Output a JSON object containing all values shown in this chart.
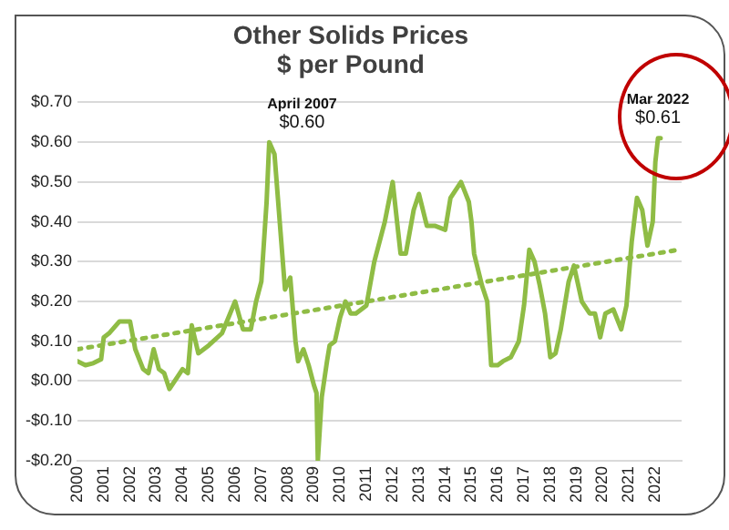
{
  "chart_data": {
    "type": "line",
    "title": "Other Solids Prices\n$ per Pound",
    "series": [
      {
        "color": "#8fbc45",
        "line_style": "solid",
        "x": [
          2000,
          2000.3,
          2000.6,
          2000.9,
          2001,
          2001.2,
          2001.6,
          2002,
          2002.2,
          2002.5,
          2002.7,
          2002.9,
          2003.1,
          2003.3,
          2003.5,
          2003.8,
          2004,
          2004.2,
          2004.35,
          2004.6,
          2005,
          2005.5,
          2006,
          2006.3,
          2006.6,
          2006.8,
          2007,
          2007.2,
          2007.3,
          2007.5,
          2007.7,
          2007.9,
          2008.1,
          2008.3,
          2008.4,
          2008.6,
          2008.8,
          2009,
          2009.1,
          2009.15,
          2009.3,
          2009.5,
          2009.6,
          2009.8,
          2010,
          2010.2,
          2010.4,
          2010.6,
          2011,
          2011.3,
          2011.7,
          2012,
          2012.3,
          2012.5,
          2012.8,
          2013,
          2013.3,
          2013.6,
          2014,
          2014.2,
          2014.6,
          2014.9,
          2015,
          2015.1,
          2015.4,
          2015.6,
          2015.75,
          2016,
          2016.2,
          2016.5,
          2016.8,
          2017,
          2017.2,
          2017.4,
          2017.6,
          2017.8,
          2018,
          2018.2,
          2018.4,
          2018.7,
          2018.9,
          2019.2,
          2019.5,
          2019.7,
          2019.9,
          2020.1,
          2020.4,
          2020.7,
          2020.9,
          2021.1,
          2021.3,
          2021.5,
          2021.7,
          2021.9,
          2022,
          2022.1,
          2022.2
        ],
        "values": [
          0.05,
          0.04,
          0.045,
          0.055,
          0.11,
          0.12,
          0.15,
          0.15,
          0.08,
          0.03,
          0.02,
          0.08,
          0.03,
          0.02,
          -0.02,
          0.01,
          0.03,
          0.02,
          0.14,
          0.07,
          0.09,
          0.12,
          0.2,
          0.13,
          0.13,
          0.2,
          0.25,
          0.45,
          0.6,
          0.57,
          0.4,
          0.23,
          0.26,
          0.1,
          0.05,
          0.08,
          0.04,
          -0.01,
          -0.03,
          -0.2,
          -0.04,
          0.05,
          0.09,
          0.1,
          0.16,
          0.2,
          0.17,
          0.17,
          0.19,
          0.3,
          0.4,
          0.5,
          0.32,
          0.32,
          0.43,
          0.47,
          0.39,
          0.39,
          0.38,
          0.46,
          0.5,
          0.45,
          0.4,
          0.32,
          0.24,
          0.2,
          0.04,
          0.04,
          0.05,
          0.06,
          0.1,
          0.19,
          0.33,
          0.3,
          0.24,
          0.17,
          0.06,
          0.07,
          0.13,
          0.25,
          0.29,
          0.2,
          0.17,
          0.17,
          0.11,
          0.17,
          0.18,
          0.13,
          0.19,
          0.35,
          0.46,
          0.43,
          0.34,
          0.4,
          0.55,
          0.61,
          0.61
        ]
      },
      {
        "type": "line",
        "color": "#8fbc45",
        "line_style": "dotted",
        "x": [
          2000,
          2022.9
        ],
        "values": [
          0.08,
          0.33
        ]
      }
    ],
    "xlim": [
      2000,
      2023
    ],
    "xticks": [
      2000,
      2001,
      2002,
      2003,
      2004,
      2005,
      2006,
      2007,
      2008,
      2009,
      2010,
      2011,
      2012,
      2013,
      2014,
      2015,
      2016,
      2017,
      2018,
      2019,
      2020,
      2021,
      2022
    ],
    "ylim": [
      -0.2,
      0.7
    ],
    "yticks": [
      {
        "value": -0.2,
        "label": "-$0.20"
      },
      {
        "value": -0.1,
        "label": "-$0.10"
      },
      {
        "value": 0,
        "label": "$0.00"
      },
      {
        "value": 0.1,
        "label": "$0.10"
      },
      {
        "value": 0.2,
        "label": "$0.20"
      },
      {
        "value": 0.3,
        "label": "$0.30"
      },
      {
        "value": 0.4,
        "label": "$0.40"
      },
      {
        "value": 0.5,
        "label": "$0.50"
      },
      {
        "value": 0.6,
        "label": "$0.60"
      },
      {
        "value": 0.7,
        "label": "$0.70"
      }
    ],
    "grid": "y",
    "legend": false,
    "marker": "none",
    "annotations": [
      {
        "text": "April 2007\n$0.60",
        "x": 2007.3,
        "y": 0.6
      },
      {
        "text": "Mar 2022\n$0.61",
        "x": 2022.1,
        "y": 0.61
      }
    ]
  }
}
